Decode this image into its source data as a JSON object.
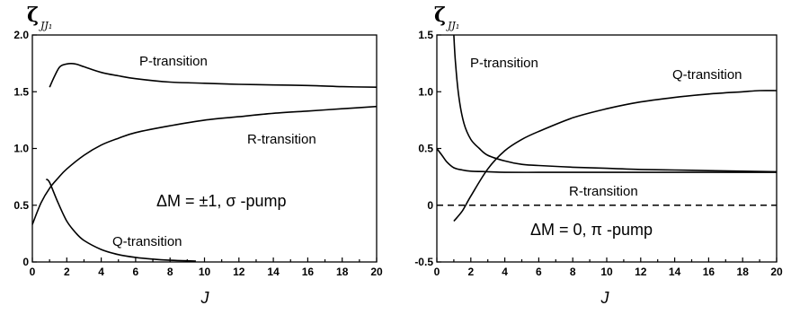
{
  "chart_data": [
    {
      "type": "line",
      "ylabel_main": "ζ",
      "ylabel_sub": "JJ₁",
      "xlabel": "J",
      "xlim": [
        0,
        20
      ],
      "ylim": [
        0,
        2.0
      ],
      "xticks": [
        0,
        2,
        4,
        6,
        8,
        10,
        12,
        14,
        16,
        18,
        20
      ],
      "yticks": [
        0,
        0.5,
        1.0,
        1.5,
        2.0
      ],
      "ytick_labels": [
        "0",
        "0.5",
        "1.0",
        "1.5",
        "2.0"
      ],
      "condition": "ΔM = ±1, σ -pump",
      "series": [
        {
          "name": "P-transition",
          "x": [
            1,
            1.3,
            1.6,
            2,
            2.5,
            3,
            4,
            5,
            6,
            8,
            10,
            12,
            14,
            16,
            18,
            20
          ],
          "y": [
            1.54,
            1.64,
            1.72,
            1.745,
            1.745,
            1.72,
            1.67,
            1.64,
            1.615,
            1.585,
            1.575,
            1.565,
            1.56,
            1.555,
            1.545,
            1.54
          ]
        },
        {
          "name": "R-transition",
          "x": [
            0,
            0.5,
            1,
            1.5,
            2,
            3,
            4,
            5,
            6,
            8,
            10,
            12,
            14,
            16,
            18,
            20
          ],
          "y": [
            0.33,
            0.52,
            0.65,
            0.74,
            0.82,
            0.94,
            1.03,
            1.09,
            1.14,
            1.2,
            1.25,
            1.28,
            1.31,
            1.33,
            1.35,
            1.37
          ]
        },
        {
          "name": "Q-transition",
          "x": [
            0.8,
            1,
            1.5,
            2,
            2.5,
            3,
            4,
            5,
            6,
            7,
            8,
            9,
            9.5
          ],
          "y": [
            0.73,
            0.7,
            0.52,
            0.36,
            0.26,
            0.19,
            0.11,
            0.065,
            0.04,
            0.025,
            0.015,
            0.01,
            0.008
          ]
        }
      ]
    },
    {
      "type": "line",
      "ylabel_main": "ζ",
      "ylabel_sub": "JJ₁",
      "xlabel": "J",
      "xlim": [
        0,
        20
      ],
      "ylim": [
        -0.5,
        1.5
      ],
      "xticks": [
        0,
        2,
        4,
        6,
        8,
        10,
        12,
        14,
        16,
        18,
        20
      ],
      "yticks": [
        -0.5,
        0,
        0.5,
        1.0,
        1.5
      ],
      "ytick_labels": [
        "-0.5",
        "0",
        "0.5",
        "1.0",
        "1.5"
      ],
      "condition": "ΔM = 0, π -pump",
      "series": [
        {
          "name": "P-transition",
          "x": [
            1,
            1.1,
            1.3,
            1.6,
            2,
            2.5,
            3,
            4,
            5,
            6,
            8,
            10,
            12,
            14,
            16,
            18,
            20
          ],
          "y": [
            1.5,
            1.25,
            0.95,
            0.72,
            0.58,
            0.5,
            0.44,
            0.39,
            0.36,
            0.35,
            0.335,
            0.325,
            0.315,
            0.31,
            0.305,
            0.3,
            0.295
          ]
        },
        {
          "name": "Q-transition",
          "x": [
            1,
            1.5,
            2,
            3,
            4,
            5,
            6,
            8,
            10,
            12,
            14,
            16,
            18,
            19,
            20
          ],
          "y": [
            -0.14,
            -0.05,
            0.08,
            0.32,
            0.48,
            0.58,
            0.65,
            0.77,
            0.85,
            0.91,
            0.95,
            0.98,
            1.0,
            1.01,
            1.01
          ]
        },
        {
          "name": "R-transition",
          "x": [
            0,
            0.3,
            0.6,
            1,
            1.5,
            2,
            3,
            4,
            6,
            8,
            10,
            12,
            14,
            16,
            18,
            20
          ],
          "y": [
            0.5,
            0.44,
            0.38,
            0.33,
            0.31,
            0.3,
            0.295,
            0.29,
            0.29,
            0.29,
            0.29,
            0.29,
            0.29,
            0.29,
            0.29,
            0.29
          ]
        }
      ],
      "reference_line": {
        "y": 0,
        "style": "dashed"
      }
    }
  ],
  "labels": {
    "left": {
      "p": "P-transition",
      "r": "R-transition",
      "q": "Q-transition"
    },
    "right": {
      "p": "P-transition",
      "q": "Q-transition",
      "r": "R-transition"
    }
  }
}
